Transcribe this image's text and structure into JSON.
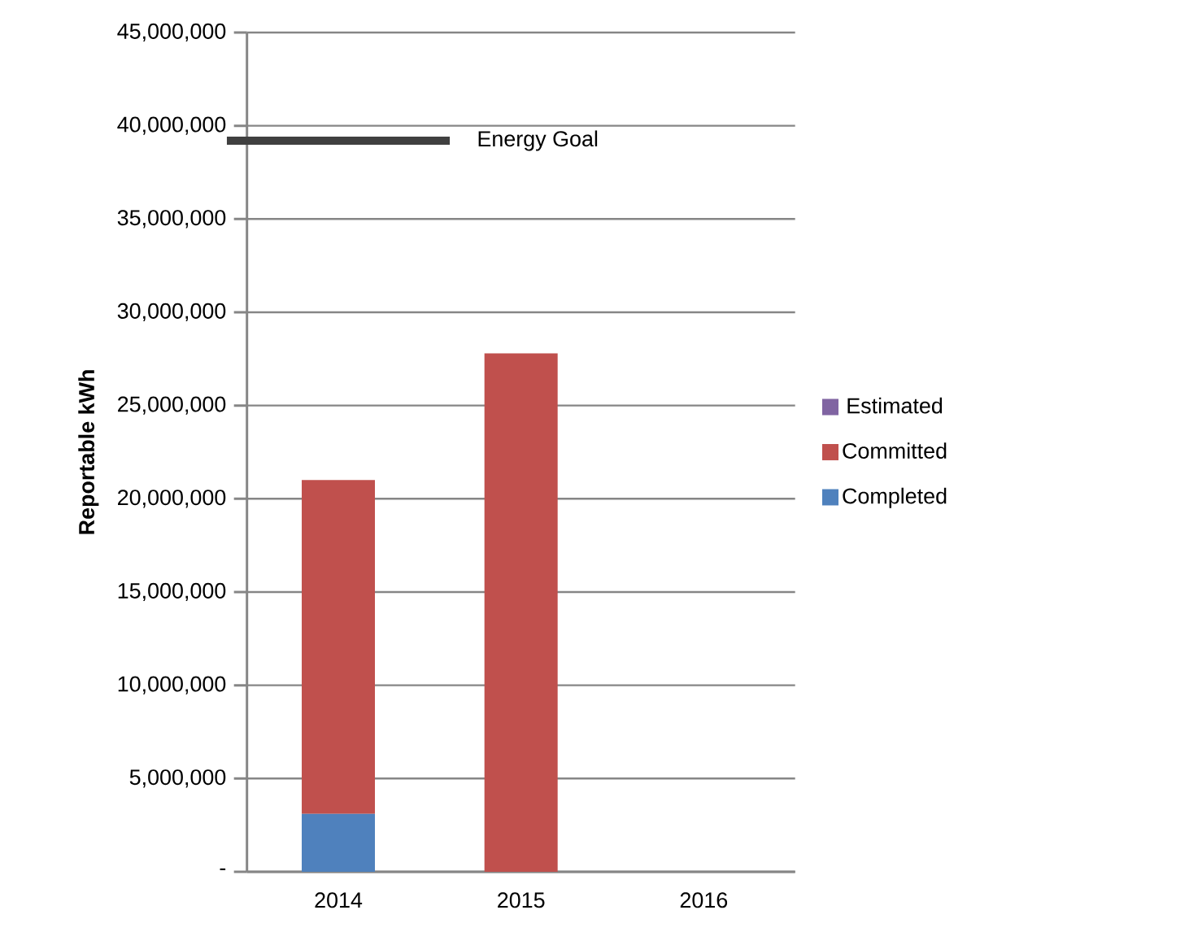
{
  "chart_data": {
    "type": "bar",
    "stacked": true,
    "ylabel": "Reportable kWh",
    "categories": [
      "2014",
      "2015",
      "2016"
    ],
    "series": [
      {
        "name": "Completed",
        "color": "#4f81bd",
        "values": [
          3100000,
          0,
          0
        ]
      },
      {
        "name": "Committed",
        "color": "#c0504d",
        "values": [
          17900000,
          27800000,
          0
        ]
      },
      {
        "name": "Estimated",
        "color": "#8064a2",
        "values": [
          0,
          0,
          0
        ]
      }
    ],
    "ylim": [
      0,
      45000000
    ],
    "yticks": [
      {
        "value": 0,
        "label": "-"
      },
      {
        "value": 5000000,
        "label": "5,000,000"
      },
      {
        "value": 10000000,
        "label": "10,000,000"
      },
      {
        "value": 15000000,
        "label": "15,000,000"
      },
      {
        "value": 20000000,
        "label": "20,000,000"
      },
      {
        "value": 25000000,
        "label": "25,000,000"
      },
      {
        "value": 30000000,
        "label": "30,000,000"
      },
      {
        "value": 35000000,
        "label": "35,000,000"
      },
      {
        "value": 40000000,
        "label": "40,000,000"
      },
      {
        "value": 45000000,
        "label": "45,000,000"
      }
    ],
    "grid": "y",
    "legend": "right",
    "ref_lines": [
      {
        "axis": "y",
        "value": 39200000,
        "label": "Energy Goal",
        "color": "#404040"
      }
    ]
  }
}
